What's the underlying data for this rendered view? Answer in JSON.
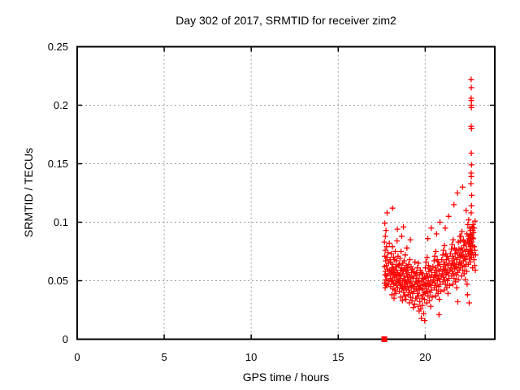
{
  "colors": {
    "background": "#ffffff",
    "axis": "#000000",
    "text": "#000000",
    "grid": "#9e9e9e",
    "marker": "#ff0000"
  },
  "chart_data": {
    "type": "scatter",
    "title": "Day 302 of 2017, SRMTID for receiver zim2",
    "xlabel": "GPS time / hours",
    "ylabel": "SRMTID / TECUs",
    "xlim": [
      0,
      24
    ],
    "ylim": [
      0,
      0.25
    ],
    "grid": "dashed",
    "legend": "none",
    "xticks": {
      "values": [
        0,
        5,
        10,
        15,
        20
      ],
      "labels": [
        "0",
        "5",
        "10",
        "15",
        "20"
      ]
    },
    "yticks": {
      "values": [
        0,
        0.05,
        0.1,
        0.15,
        0.2,
        0.25
      ],
      "labels": [
        "0",
        "0.05",
        "0.1",
        "0.15",
        "0.2",
        "0.25"
      ]
    },
    "marker": {
      "shape": "plus",
      "color": "#ff0000",
      "size": 7
    },
    "baseline_point": {
      "x": 17.65,
      "y": 0,
      "shape": "square",
      "color": "#ff0000",
      "size": 7
    },
    "points": [
      [
        17.66,
        0.062
      ],
      [
        17.66,
        0.083
      ],
      [
        17.67,
        0.048
      ],
      [
        17.68,
        0.071
      ],
      [
        17.68,
        0.099
      ],
      [
        17.69,
        0.055
      ],
      [
        17.7,
        0.044
      ],
      [
        17.7,
        0.076
      ],
      [
        17.71,
        0.088
      ],
      [
        17.72,
        0.058
      ],
      [
        17.73,
        0.067
      ],
      [
        17.74,
        0.051
      ],
      [
        17.75,
        0.093
      ],
      [
        17.76,
        0.046
      ],
      [
        17.77,
        0.063
      ],
      [
        17.78,
        0.079
      ],
      [
        17.79,
        0.054
      ],
      [
        17.8,
        0.07
      ],
      [
        17.81,
        0.108
      ],
      [
        17.82,
        0.06
      ],
      [
        17.84,
        0.047
      ],
      [
        17.86,
        0.074
      ],
      [
        17.88,
        0.056
      ],
      [
        17.9,
        0.065
      ],
      [
        17.92,
        0.05
      ],
      [
        17.94,
        0.082
      ],
      [
        17.96,
        0.059
      ],
      [
        17.98,
        0.068
      ],
      [
        18,
        0.052
      ],
      [
        18.01,
        0.066
      ],
      [
        18.02,
        0.045
      ],
      [
        18.04,
        0.058
      ],
      [
        18.05,
        0.073
      ],
      [
        18.06,
        0.049
      ],
      [
        18.08,
        0.061
      ],
      [
        18.09,
        0.038
      ],
      [
        18.1,
        0.055
      ],
      [
        18.11,
        0.079
      ],
      [
        18.12,
        0.112
      ],
      [
        18.13,
        0.05
      ],
      [
        18.14,
        0.064
      ],
      [
        18.15,
        0.043
      ],
      [
        18.16,
        0.057
      ],
      [
        18.18,
        0.07
      ],
      [
        18.19,
        0.047
      ],
      [
        18.2,
        0.06
      ],
      [
        18.21,
        0.035
      ],
      [
        18.22,
        0.053
      ],
      [
        18.24,
        0.068
      ],
      [
        18.25,
        0.042
      ],
      [
        18.26,
        0.056
      ],
      [
        18.28,
        0.075
      ],
      [
        18.29,
        0.048
      ],
      [
        18.3,
        0.062
      ],
      [
        18.31,
        0.039
      ],
      [
        18.32,
        0.054
      ],
      [
        18.34,
        0.067
      ],
      [
        18.35,
        0.046
      ],
      [
        18.36,
        0.059
      ],
      [
        18.38,
        0.084
      ],
      [
        18.39,
        0.051
      ],
      [
        18.4,
        0.094
      ],
      [
        18.41,
        0.044
      ],
      [
        18.42,
        0.057
      ],
      [
        18.44,
        0.071
      ],
      [
        18.45,
        0.049
      ],
      [
        18.46,
        0.063
      ],
      [
        18.48,
        0.055
      ],
      [
        18.5,
        0.05
      ],
      [
        18.51,
        0.064
      ],
      [
        18.52,
        0.041
      ],
      [
        18.54,
        0.055
      ],
      [
        18.55,
        0.069
      ],
      [
        18.56,
        0.046
      ],
      [
        18.58,
        0.059
      ],
      [
        18.59,
        0.036
      ],
      [
        18.6,
        0.052
      ],
      [
        18.61,
        0.075
      ],
      [
        18.62,
        0.047
      ],
      [
        18.64,
        0.061
      ],
      [
        18.65,
        0.088
      ],
      [
        18.66,
        0.043
      ],
      [
        18.68,
        0.056
      ],
      [
        18.69,
        0.033
      ],
      [
        18.7,
        0.05
      ],
      [
        18.71,
        0.065
      ],
      [
        18.72,
        0.044
      ],
      [
        18.74,
        0.058
      ],
      [
        18.75,
        0.096
      ],
      [
        18.76,
        0.04
      ],
      [
        18.78,
        0.054
      ],
      [
        18.79,
        0.067
      ],
      [
        18.8,
        0.047
      ],
      [
        18.81,
        0.06
      ],
      [
        18.82,
        0.037
      ],
      [
        18.84,
        0.051
      ],
      [
        18.85,
        0.072
      ],
      [
        18.86,
        0.045
      ],
      [
        18.88,
        0.058
      ],
      [
        18.89,
        0.034
      ],
      [
        18.9,
        0.049
      ],
      [
        18.91,
        0.063
      ],
      [
        18.92,
        0.042
      ],
      [
        18.94,
        0.056
      ],
      [
        18.95,
        0.078
      ],
      [
        18.96,
        0.048
      ],
      [
        18.98,
        0.061
      ],
      [
        18.99,
        0.053
      ],
      [
        19,
        0.045
      ],
      [
        19.01,
        0.059
      ],
      [
        19.02,
        0.038
      ],
      [
        19.04,
        0.051
      ],
      [
        19.05,
        0.064
      ],
      [
        19.06,
        0.042
      ],
      [
        19.08,
        0.055
      ],
      [
        19.09,
        0.031
      ],
      [
        19.1,
        0.048
      ],
      [
        19.11,
        0.068
      ],
      [
        19.12,
        0.04
      ],
      [
        19.14,
        0.053
      ],
      [
        19.15,
        0.085
      ],
      [
        19.16,
        0.036
      ],
      [
        19.18,
        0.049
      ],
      [
        19.19,
        0.062
      ],
      [
        19.2,
        0.044
      ],
      [
        19.22,
        0.057
      ],
      [
        19.24,
        0.033
      ],
      [
        19.25,
        0.046
      ],
      [
        19.26,
        0.06
      ],
      [
        19.28,
        0.039
      ],
      [
        19.3,
        0.052
      ],
      [
        19.31,
        0.027
      ],
      [
        19.32,
        0.045
      ],
      [
        19.34,
        0.058
      ],
      [
        19.35,
        0.041
      ],
      [
        19.36,
        0.054
      ],
      [
        19.38,
        0.03
      ],
      [
        19.4,
        0.047
      ],
      [
        19.41,
        0.066
      ],
      [
        19.42,
        0.043
      ],
      [
        19.44,
        0.056
      ],
      [
        19.45,
        0.035
      ],
      [
        19.46,
        0.049
      ],
      [
        19.48,
        0.052
      ],
      [
        19.5,
        0.043
      ],
      [
        19.51,
        0.057
      ],
      [
        19.52,
        0.035
      ],
      [
        19.54,
        0.048
      ],
      [
        19.55,
        0.061
      ],
      [
        19.56,
        0.039
      ],
      [
        19.58,
        0.052
      ],
      [
        19.59,
        0.028
      ],
      [
        19.6,
        0.045
      ],
      [
        19.61,
        0.065
      ],
      [
        19.62,
        0.037
      ],
      [
        19.64,
        0.05
      ],
      [
        19.65,
        0.024
      ],
      [
        19.66,
        0.042
      ],
      [
        19.68,
        0.055
      ],
      [
        19.69,
        0.032
      ],
      [
        19.7,
        0.046
      ],
      [
        19.72,
        0.059
      ],
      [
        19.74,
        0.026
      ],
      [
        19.75,
        0.044
      ],
      [
        19.76,
        0.057
      ],
      [
        19.78,
        0.018
      ],
      [
        19.8,
        0.049
      ],
      [
        19.81,
        0.035
      ],
      [
        19.82,
        0.052
      ],
      [
        19.84,
        0.029
      ],
      [
        19.85,
        0.043
      ],
      [
        19.86,
        0.056
      ],
      [
        19.88,
        0.038
      ],
      [
        19.9,
        0.047
      ],
      [
        19.91,
        0.022
      ],
      [
        19.92,
        0.051
      ],
      [
        19.94,
        0.04
      ],
      [
        19.95,
        0.053
      ],
      [
        19.96,
        0.034
      ],
      [
        19.97,
        0.016
      ],
      [
        19.98,
        0.046
      ],
      [
        20,
        0.047
      ],
      [
        20.01,
        0.061
      ],
      [
        20.02,
        0.039
      ],
      [
        20.04,
        0.052
      ],
      [
        20.05,
        0.066
      ],
      [
        20.06,
        0.043
      ],
      [
        20.08,
        0.056
      ],
      [
        20.09,
        0.031
      ],
      [
        20.1,
        0.048
      ],
      [
        20.11,
        0.07
      ],
      [
        20.12,
        0.041
      ],
      [
        20.14,
        0.054
      ],
      [
        20.15,
        0.086
      ],
      [
        20.16,
        0.037
      ],
      [
        20.18,
        0.05
      ],
      [
        20.19,
        0.063
      ],
      [
        20.2,
        0.045
      ],
      [
        20.22,
        0.058
      ],
      [
        20.24,
        0.033
      ],
      [
        20.25,
        0.047
      ],
      [
        20.26,
        0.06
      ],
      [
        20.28,
        0.04
      ],
      [
        20.3,
        0.053
      ],
      [
        20.31,
        0.028
      ],
      [
        20.32,
        0.046
      ],
      [
        20.34,
        0.059
      ],
      [
        20.35,
        0.095
      ],
      [
        20.36,
        0.042
      ],
      [
        20.38,
        0.055
      ],
      [
        20.4,
        0.036
      ],
      [
        20.41,
        0.049
      ],
      [
        20.44,
        0.062
      ],
      [
        20.48,
        0.051
      ],
      [
        20.5,
        0.053
      ],
      [
        20.51,
        0.067
      ],
      [
        20.52,
        0.044
      ],
      [
        20.54,
        0.057
      ],
      [
        20.55,
        0.071
      ],
      [
        20.56,
        0.048
      ],
      [
        20.58,
        0.061
      ],
      [
        20.59,
        0.037
      ],
      [
        20.6,
        0.054
      ],
      [
        20.61,
        0.075
      ],
      [
        20.62,
        0.046
      ],
      [
        20.64,
        0.059
      ],
      [
        20.65,
        0.09
      ],
      [
        20.66,
        0.042
      ],
      [
        20.68,
        0.055
      ],
      [
        20.69,
        0.068
      ],
      [
        20.7,
        0.05
      ],
      [
        20.72,
        0.063
      ],
      [
        20.74,
        0.039
      ],
      [
        20.75,
        0.052
      ],
      [
        20.76,
        0.066
      ],
      [
        20.78,
        0.045
      ],
      [
        20.79,
        0.021
      ],
      [
        20.8,
        0.058
      ],
      [
        20.81,
        0.034
      ],
      [
        20.82,
        0.051
      ],
      [
        20.84,
        0.064
      ],
      [
        20.85,
        0.1
      ],
      [
        20.86,
        0.047
      ],
      [
        20.88,
        0.06
      ],
      [
        20.9,
        0.041
      ],
      [
        20.92,
        0.054
      ],
      [
        20.95,
        0.068
      ],
      [
        20.98,
        0.056
      ],
      [
        21,
        0.058
      ],
      [
        21.01,
        0.072
      ],
      [
        21.02,
        0.049
      ],
      [
        21.04,
        0.062
      ],
      [
        21.05,
        0.076
      ],
      [
        21.06,
        0.053
      ],
      [
        21.08,
        0.066
      ],
      [
        21.09,
        0.042
      ],
      [
        21.1,
        0.059
      ],
      [
        21.11,
        0.08
      ],
      [
        21.12,
        0.051
      ],
      [
        21.14,
        0.064
      ],
      [
        21.15,
        0.095
      ],
      [
        21.16,
        0.047
      ],
      [
        21.18,
        0.06
      ],
      [
        21.19,
        0.073
      ],
      [
        21.2,
        0.055
      ],
      [
        21.22,
        0.068
      ],
      [
        21.24,
        0.044
      ],
      [
        21.25,
        0.057
      ],
      [
        21.26,
        0.071
      ],
      [
        21.28,
        0.05
      ],
      [
        21.3,
        0.063
      ],
      [
        21.31,
        0.039
      ],
      [
        21.32,
        0.056
      ],
      [
        21.34,
        0.069
      ],
      [
        21.35,
        0.105
      ],
      [
        21.36,
        0.052
      ],
      [
        21.38,
        0.065
      ],
      [
        21.4,
        0.046
      ],
      [
        21.42,
        0.059
      ],
      [
        21.45,
        0.073
      ],
      [
        21.48,
        0.061
      ],
      [
        21.5,
        0.063
      ],
      [
        21.51,
        0.077
      ],
      [
        21.52,
        0.054
      ],
      [
        21.54,
        0.067
      ],
      [
        21.55,
        0.081
      ],
      [
        21.56,
        0.058
      ],
      [
        21.58,
        0.071
      ],
      [
        21.59,
        0.047
      ],
      [
        21.6,
        0.064
      ],
      [
        21.61,
        0.085
      ],
      [
        21.62,
        0.056
      ],
      [
        21.64,
        0.069
      ],
      [
        21.65,
        0.115
      ],
      [
        21.66,
        0.052
      ],
      [
        21.68,
        0.065
      ],
      [
        21.69,
        0.078
      ],
      [
        21.7,
        0.06
      ],
      [
        21.72,
        0.073
      ],
      [
        21.74,
        0.049
      ],
      [
        21.75,
        0.062
      ],
      [
        21.76,
        0.076
      ],
      [
        21.78,
        0.055
      ],
      [
        21.8,
        0.068
      ],
      [
        21.81,
        0.044
      ],
      [
        21.82,
        0.061
      ],
      [
        21.84,
        0.074
      ],
      [
        21.85,
        0.125
      ],
      [
        21.86,
        0.057
      ],
      [
        21.87,
        0.032
      ],
      [
        21.88,
        0.07
      ],
      [
        21.9,
        0.051
      ],
      [
        21.91,
        0.083
      ],
      [
        21.92,
        0.064
      ],
      [
        21.94,
        0.077
      ],
      [
        21.95,
        0.059
      ],
      [
        21.96,
        0.072
      ],
      [
        21.98,
        0.066
      ],
      [
        21.99,
        0.088
      ],
      [
        22,
        0.07
      ],
      [
        22.01,
        0.084
      ],
      [
        22.02,
        0.061
      ],
      [
        22.04,
        0.074
      ],
      [
        22.05,
        0.088
      ],
      [
        22.06,
        0.065
      ],
      [
        22.08,
        0.078
      ],
      [
        22.09,
        0.054
      ],
      [
        22.1,
        0.071
      ],
      [
        22.11,
        0.092
      ],
      [
        22.12,
        0.063
      ],
      [
        22.14,
        0.076
      ],
      [
        22.15,
        0.13
      ],
      [
        22.16,
        0.059
      ],
      [
        22.18,
        0.072
      ],
      [
        22.19,
        0.085
      ],
      [
        22.2,
        0.067
      ],
      [
        22.22,
        0.08
      ],
      [
        22.24,
        0.056
      ],
      [
        22.25,
        0.069
      ],
      [
        22.26,
        0.083
      ],
      [
        22.28,
        0.062
      ],
      [
        22.3,
        0.075
      ],
      [
        22.31,
        0.051
      ],
      [
        22.32,
        0.068
      ],
      [
        22.34,
        0.081
      ],
      [
        22.35,
        0.11
      ],
      [
        22.36,
        0.064
      ],
      [
        22.38,
        0.077
      ],
      [
        22.39,
        0.058
      ],
      [
        22.4,
        0.071
      ],
      [
        22.4,
        0.09
      ],
      [
        22.41,
        0.047
      ],
      [
        22.43,
        0.038
      ],
      [
        22.44,
        0.084
      ],
      [
        22.45,
        0.098
      ],
      [
        22.46,
        0.075
      ],
      [
        22.47,
        0.088
      ],
      [
        22.48,
        0.064
      ],
      [
        22.49,
        0.081
      ],
      [
        22.5,
        0.102
      ],
      [
        22.51,
        0.073
      ],
      [
        22.52,
        0.086
      ],
      [
        22.53,
        0.031
      ],
      [
        22.54,
        0.069
      ],
      [
        22.55,
        0.082
      ],
      [
        22.56,
        0.095
      ],
      [
        22.57,
        0.077
      ],
      [
        22.58,
        0.09
      ],
      [
        22.59,
        0.066
      ],
      [
        22.6,
        0.079
      ],
      [
        22.61,
        0.093
      ],
      [
        22.62,
        0.072
      ],
      [
        22.63,
        0.085
      ],
      [
        22.64,
        0.108
      ],
      [
        22.65,
        0.076
      ],
      [
        22.66,
        0.089
      ],
      [
        22.67,
        0.07
      ],
      [
        22.68,
        0.083
      ],
      [
        22.69,
        0.096
      ],
      [
        22.7,
        0.074
      ],
      [
        22.71,
        0.087
      ],
      [
        22.72,
        0.061
      ],
      [
        22.73,
        0.08
      ],
      [
        22.74,
        0.093
      ],
      [
        22.75,
        0.098
      ],
      [
        22.76,
        0.086
      ],
      [
        22.77,
        0.072
      ],
      [
        22.78,
        0.091
      ],
      [
        22.64,
        0.222
      ],
      [
        22.65,
        0.215
      ],
      [
        22.64,
        0.206
      ],
      [
        22.65,
        0.204
      ],
      [
        22.66,
        0.2
      ],
      [
        22.65,
        0.198
      ],
      [
        22.64,
        0.182
      ],
      [
        22.66,
        0.18
      ],
      [
        22.65,
        0.159
      ],
      [
        22.66,
        0.149
      ],
      [
        22.64,
        0.142
      ],
      [
        22.65,
        0.139
      ],
      [
        22.63,
        0.133
      ],
      [
        22.67,
        0.123
      ],
      [
        22.66,
        0.114
      ],
      [
        22.8,
        0.068
      ],
      [
        22.81,
        0.095
      ],
      [
        22.82,
        0.079
      ],
      [
        22.84,
        0.063
      ],
      [
        22.85,
        0.076
      ],
      [
        22.86,
        0.101
      ],
      [
        22.88,
        0.059
      ],
      [
        22.9,
        0.072
      ]
    ]
  }
}
